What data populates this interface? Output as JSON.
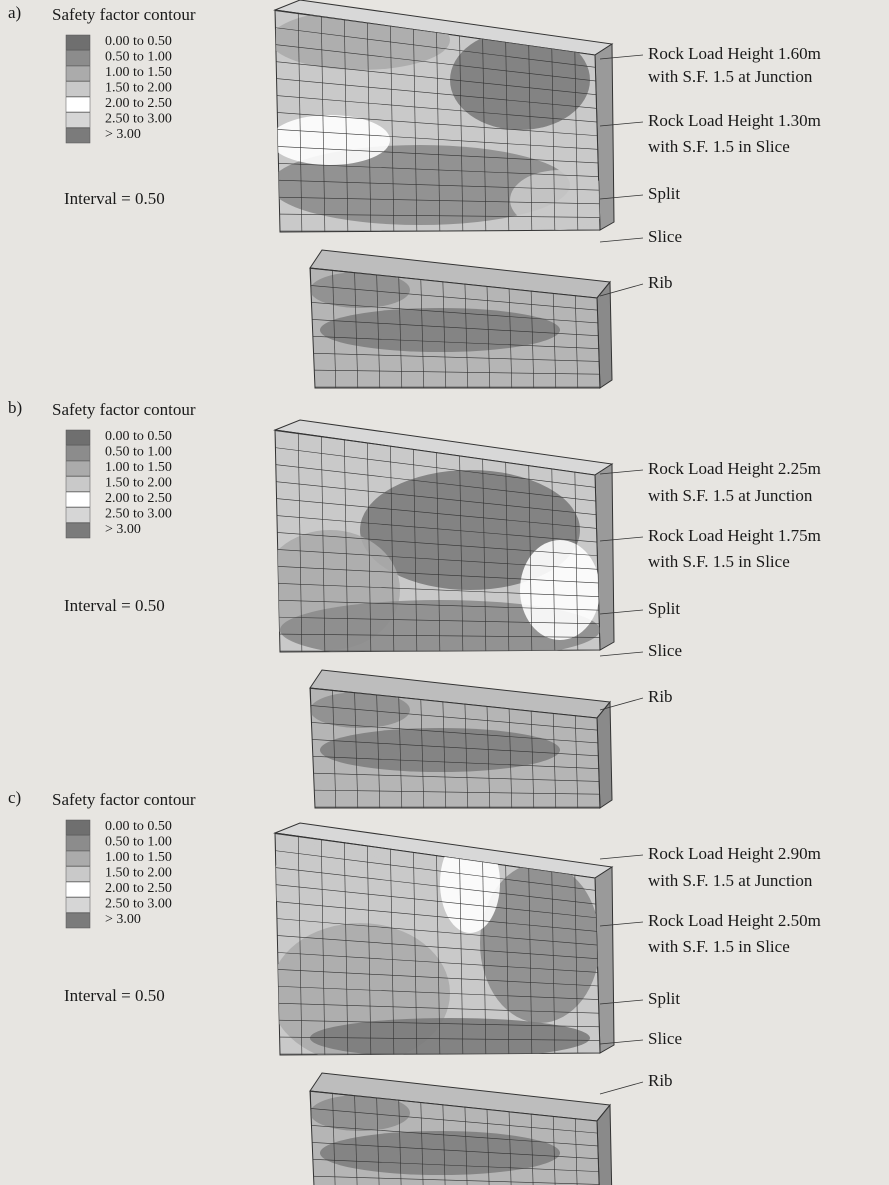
{
  "panels": [
    {
      "label": "a)",
      "legend_title": "Safety factor contour",
      "legend": [
        {
          "label": "0.00 to 0.50",
          "color": "#6f6f6f"
        },
        {
          "label": "0.50 to 1.00",
          "color": "#8c8c8c"
        },
        {
          "label": "1.00 to 1.50",
          "color": "#ababab"
        },
        {
          "label": "1.50 to 2.00",
          "color": "#c9c9c9"
        },
        {
          "label": "2.00 to 2.50",
          "color": "#ffffff"
        },
        {
          "label": "2.50 to 3.00",
          "color": "#d6d6d6"
        },
        {
          "label": "> 3.00",
          "color": "#7b7b7b"
        }
      ],
      "interval": "Interval = 0.50",
      "annotations": [
        "Rock Load Height 1.60m",
        "with S.F. 1.5 at Junction",
        "Rock Load Height 1.30m",
        "with S.F. 1.5 in Slice",
        "Split",
        "Slice",
        "Rib"
      ]
    },
    {
      "label": "b)",
      "legend_title": "Safety factor contour",
      "legend": [
        {
          "label": "0.00 to 0.50",
          "color": "#6f6f6f"
        },
        {
          "label": "0.50 to 1.00",
          "color": "#8c8c8c"
        },
        {
          "label": "1.00 to 1.50",
          "color": "#ababab"
        },
        {
          "label": "1.50 to 2.00",
          "color": "#c9c9c9"
        },
        {
          "label": "2.00 to 2.50",
          "color": "#ffffff"
        },
        {
          "label": "2.50 to 3.00",
          "color": "#d6d6d6"
        },
        {
          "label": "> 3.00",
          "color": "#7b7b7b"
        }
      ],
      "interval": "Interval = 0.50",
      "annotations": [
        "Rock Load Height 2.25m",
        "with S.F. 1.5 at Junction",
        "Rock Load Height 1.75m",
        "with S.F. 1.5 in Slice",
        "Split",
        "Slice",
        "Rib"
      ]
    },
    {
      "label": "c)",
      "legend_title": "Safety factor contour",
      "legend": [
        {
          "label": "0.00 to 0.50",
          "color": "#6f6f6f"
        },
        {
          "label": "0.50 to 1.00",
          "color": "#8c8c8c"
        },
        {
          "label": "1.00 to 1.50",
          "color": "#ababab"
        },
        {
          "label": "1.50 to 2.00",
          "color": "#c9c9c9"
        },
        {
          "label": "2.00 to 2.50",
          "color": "#ffffff"
        },
        {
          "label": "2.50 to 3.00",
          "color": "#d6d6d6"
        },
        {
          "label": "> 3.00",
          "color": "#7b7b7b"
        }
      ],
      "interval": "Interval = 0.50",
      "annotations": [
        "Rock Load Height 2.90m",
        "with S.F. 1.5 at Junction",
        "Rock Load Height 2.50m",
        "with S.F. 1.5 in Slice",
        "Split",
        "Slice",
        "Rib"
      ]
    }
  ]
}
